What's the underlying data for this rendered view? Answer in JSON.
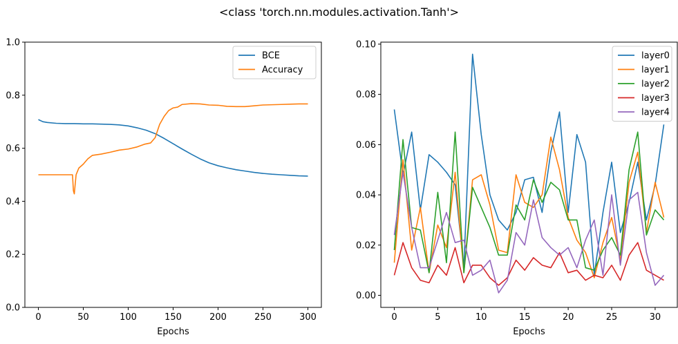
{
  "figure": {
    "suptitle": "<class 'torch.nn.modules.activation.Tanh'>"
  },
  "chart_data": [
    {
      "type": "line",
      "xlabel": "Epochs",
      "ylabel": "",
      "xlim": [
        -15,
        315
      ],
      "ylim": [
        0,
        1.0
      ],
      "xticks": [
        0,
        50,
        100,
        150,
        200,
        250,
        300
      ],
      "yticks": [
        0.0,
        0.2,
        0.4,
        0.6,
        0.8,
        1.0
      ],
      "ytick_decimals": 1,
      "legend": "top-right",
      "grid": false,
      "series": [
        {
          "name": "BCE",
          "color": "#1f77b4",
          "x": [
            0,
            5,
            10,
            20,
            30,
            40,
            50,
            60,
            70,
            80,
            90,
            100,
            110,
            120,
            130,
            140,
            150,
            160,
            170,
            180,
            190,
            200,
            210,
            220,
            230,
            240,
            250,
            260,
            270,
            280,
            290,
            300
          ],
          "values": [
            0.708,
            0.7,
            0.697,
            0.694,
            0.693,
            0.693,
            0.692,
            0.692,
            0.691,
            0.69,
            0.688,
            0.684,
            0.677,
            0.668,
            0.655,
            0.637,
            0.617,
            0.597,
            0.578,
            0.56,
            0.545,
            0.534,
            0.526,
            0.519,
            0.514,
            0.509,
            0.505,
            0.502,
            0.5,
            0.498,
            0.496,
            0.495
          ]
        },
        {
          "name": "Accuracy",
          "color": "#ff7f0e",
          "x": [
            0,
            38,
            39,
            40,
            42,
            45,
            50,
            55,
            60,
            70,
            80,
            90,
            100,
            110,
            118,
            125,
            130,
            135,
            140,
            145,
            150,
            155,
            160,
            170,
            180,
            190,
            200,
            210,
            220,
            230,
            240,
            250,
            260,
            270,
            280,
            290,
            300
          ],
          "values": [
            0.5,
            0.5,
            0.44,
            0.428,
            0.5,
            0.525,
            0.54,
            0.56,
            0.573,
            0.578,
            0.585,
            0.593,
            0.597,
            0.605,
            0.615,
            0.62,
            0.64,
            0.69,
            0.72,
            0.742,
            0.752,
            0.755,
            0.765,
            0.768,
            0.767,
            0.763,
            0.762,
            0.758,
            0.757,
            0.757,
            0.76,
            0.763,
            0.764,
            0.765,
            0.766,
            0.767,
            0.767
          ]
        }
      ]
    },
    {
      "type": "line",
      "xlabel": "Epochs",
      "ylabel": "",
      "xlim": [
        -1.55,
        32.55
      ],
      "ylim": [
        -0.0048,
        0.1008
      ],
      "xticks": [
        0,
        5,
        10,
        15,
        20,
        25,
        30
      ],
      "yticks": [
        0.0,
        0.02,
        0.04,
        0.06,
        0.08,
        0.1
      ],
      "ytick_decimals": 2,
      "legend": "top-right",
      "grid": false,
      "series": [
        {
          "name": "layer0",
          "color": "#1f77b4",
          "x": [
            0,
            1,
            2,
            3,
            4,
            5,
            6,
            7,
            8,
            9,
            10,
            11,
            12,
            13,
            14,
            15,
            16,
            17,
            18,
            19,
            20,
            21,
            22,
            23,
            24,
            25,
            26,
            27,
            28,
            29,
            30,
            31
          ],
          "values": [
            0.074,
            0.048,
            0.065,
            0.034,
            0.056,
            0.053,
            0.049,
            0.044,
            0.011,
            0.096,
            0.064,
            0.04,
            0.03,
            0.026,
            0.033,
            0.046,
            0.047,
            0.033,
            0.057,
            0.073,
            0.033,
            0.064,
            0.053,
            0.008,
            0.033,
            0.053,
            0.025,
            0.037,
            0.053,
            0.03,
            0.044,
            0.068
          ]
        },
        {
          "name": "layer1",
          "color": "#ff7f0e",
          "x": [
            0,
            1,
            2,
            3,
            4,
            5,
            6,
            7,
            8,
            9,
            10,
            11,
            12,
            13,
            14,
            15,
            16,
            17,
            18,
            19,
            20,
            21,
            22,
            23,
            24,
            25,
            26,
            27,
            28,
            29,
            30,
            31
          ],
          "values": [
            0.013,
            0.054,
            0.018,
            0.035,
            0.009,
            0.028,
            0.019,
            0.049,
            0.009,
            0.046,
            0.048,
            0.036,
            0.018,
            0.017,
            0.048,
            0.037,
            0.035,
            0.04,
            0.063,
            0.05,
            0.031,
            0.022,
            0.017,
            0.007,
            0.021,
            0.031,
            0.014,
            0.045,
            0.057,
            0.025,
            0.045,
            0.031
          ]
        },
        {
          "name": "layer2",
          "color": "#2ca02c",
          "x": [
            0,
            1,
            2,
            3,
            4,
            5,
            6,
            7,
            8,
            9,
            10,
            11,
            12,
            13,
            14,
            15,
            16,
            17,
            18,
            19,
            20,
            21,
            22,
            23,
            24,
            25,
            26,
            27,
            28,
            29,
            30,
            31
          ],
          "values": [
            0.018,
            0.062,
            0.027,
            0.026,
            0.009,
            0.041,
            0.013,
            0.065,
            0.009,
            0.043,
            0.035,
            0.027,
            0.016,
            0.016,
            0.036,
            0.03,
            0.046,
            0.037,
            0.045,
            0.042,
            0.03,
            0.03,
            0.011,
            0.01,
            0.018,
            0.023,
            0.016,
            0.05,
            0.065,
            0.024,
            0.034,
            0.03
          ]
        },
        {
          "name": "layer3",
          "color": "#d62728",
          "x": [
            0,
            1,
            2,
            3,
            4,
            5,
            6,
            7,
            8,
            9,
            10,
            11,
            12,
            13,
            14,
            15,
            16,
            17,
            18,
            19,
            20,
            21,
            22,
            23,
            24,
            25,
            26,
            27,
            28,
            29,
            30,
            31
          ],
          "values": [
            0.008,
            0.021,
            0.011,
            0.006,
            0.005,
            0.012,
            0.008,
            0.019,
            0.005,
            0.012,
            0.012,
            0.007,
            0.004,
            0.007,
            0.014,
            0.01,
            0.015,
            0.012,
            0.011,
            0.017,
            0.009,
            0.01,
            0.006,
            0.008,
            0.007,
            0.012,
            0.006,
            0.016,
            0.021,
            0.01,
            0.008,
            0.006
          ]
        },
        {
          "name": "layer4",
          "color": "#9467bd",
          "x": [
            0,
            1,
            2,
            3,
            4,
            5,
            6,
            7,
            8,
            9,
            10,
            11,
            12,
            13,
            14,
            15,
            16,
            17,
            18,
            19,
            20,
            21,
            22,
            23,
            24,
            25,
            26,
            27,
            28,
            29,
            30,
            31
          ],
          "values": [
            0.024,
            0.049,
            0.027,
            0.011,
            0.011,
            0.022,
            0.033,
            0.021,
            0.022,
            0.008,
            0.01,
            0.014,
            0.001,
            0.006,
            0.025,
            0.02,
            0.038,
            0.023,
            0.019,
            0.016,
            0.019,
            0.011,
            0.022,
            0.03,
            0.008,
            0.04,
            0.012,
            0.038,
            0.041,
            0.017,
            0.004,
            0.008
          ]
        }
      ]
    }
  ]
}
